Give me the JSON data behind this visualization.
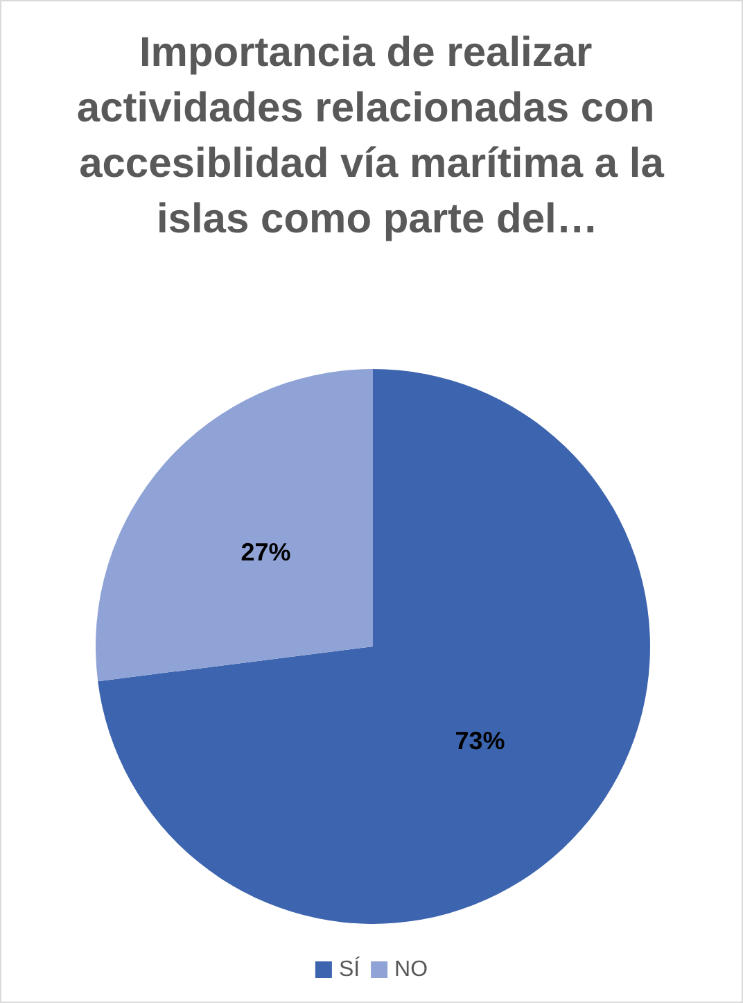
{
  "chart_data": {
    "type": "pie",
    "title": "Importancia de realizar actividades relacionadas con accesiblidad vía marítima a la islas como parte del…",
    "categories": [
      "SÍ",
      "NO"
    ],
    "values": [
      73,
      27
    ],
    "colors": [
      "#3d64ae",
      "#8fa3d6"
    ],
    "value_labels": [
      "73%",
      "27%"
    ],
    "legend": "bottom"
  }
}
